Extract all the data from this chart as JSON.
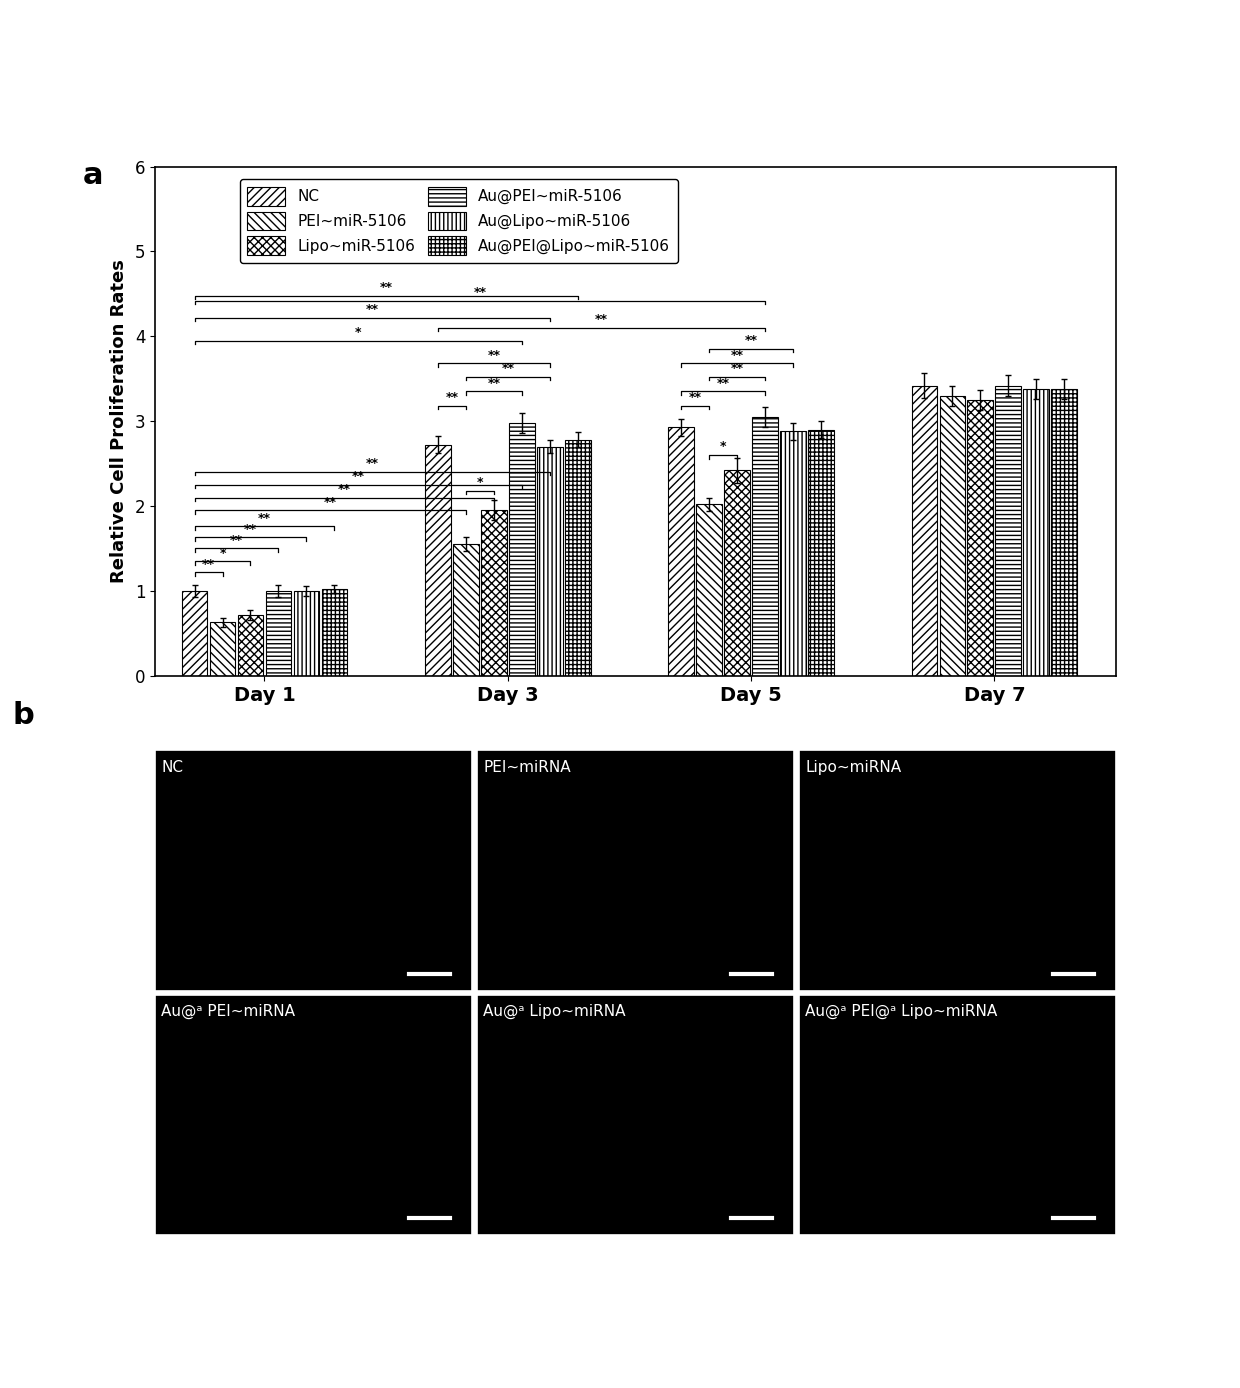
{
  "ylabel": "Relative Cell Proliferation Rates",
  "days": [
    "Day 1",
    "Day 3",
    "Day 5",
    "Day 7"
  ],
  "groups": [
    "NC",
    "PEI~miR-5106",
    "Lipo~miR-5106",
    "Au@PEI~miR-5106",
    "Au@Lipo~miR-5106",
    "Au@PEI@Lipo~miR-5106"
  ],
  "bar_values": {
    "Day 1": [
      1.0,
      0.63,
      0.72,
      1.0,
      1.0,
      1.02
    ],
    "Day 3": [
      2.72,
      1.55,
      1.95,
      2.98,
      2.7,
      2.78
    ],
    "Day 5": [
      2.93,
      2.02,
      2.42,
      3.05,
      2.88,
      2.9
    ],
    "Day 7": [
      3.42,
      3.3,
      3.25,
      3.42,
      3.38,
      3.38
    ]
  },
  "bar_errors": {
    "Day 1": [
      0.07,
      0.05,
      0.06,
      0.07,
      0.06,
      0.05
    ],
    "Day 3": [
      0.1,
      0.08,
      0.12,
      0.12,
      0.08,
      0.09
    ],
    "Day 5": [
      0.1,
      0.08,
      0.15,
      0.12,
      0.1,
      0.1
    ],
    "Day 7": [
      0.15,
      0.12,
      0.12,
      0.12,
      0.12,
      0.12
    ]
  },
  "ylim": [
    0,
    6
  ],
  "yticks": [
    0,
    1,
    2,
    3,
    4,
    5,
    6
  ],
  "legend_labels": [
    "NC",
    "PEI~miR-5106",
    "Lipo~miR-5106",
    "Au@PEI~miR-5106",
    "Au@Lipo~miR-5106",
    "Au@PEI@Lipo~miR-5106"
  ],
  "panel_b_labels_top": [
    "NC",
    "PEI~miRNA",
    "Lipo~miRNA"
  ],
  "panel_b_labels_bot": [
    "Au@a PEI~miRNA",
    "Au@a Lipo~miRNA",
    "Au@a PEI@a Lipo~miRNA"
  ]
}
